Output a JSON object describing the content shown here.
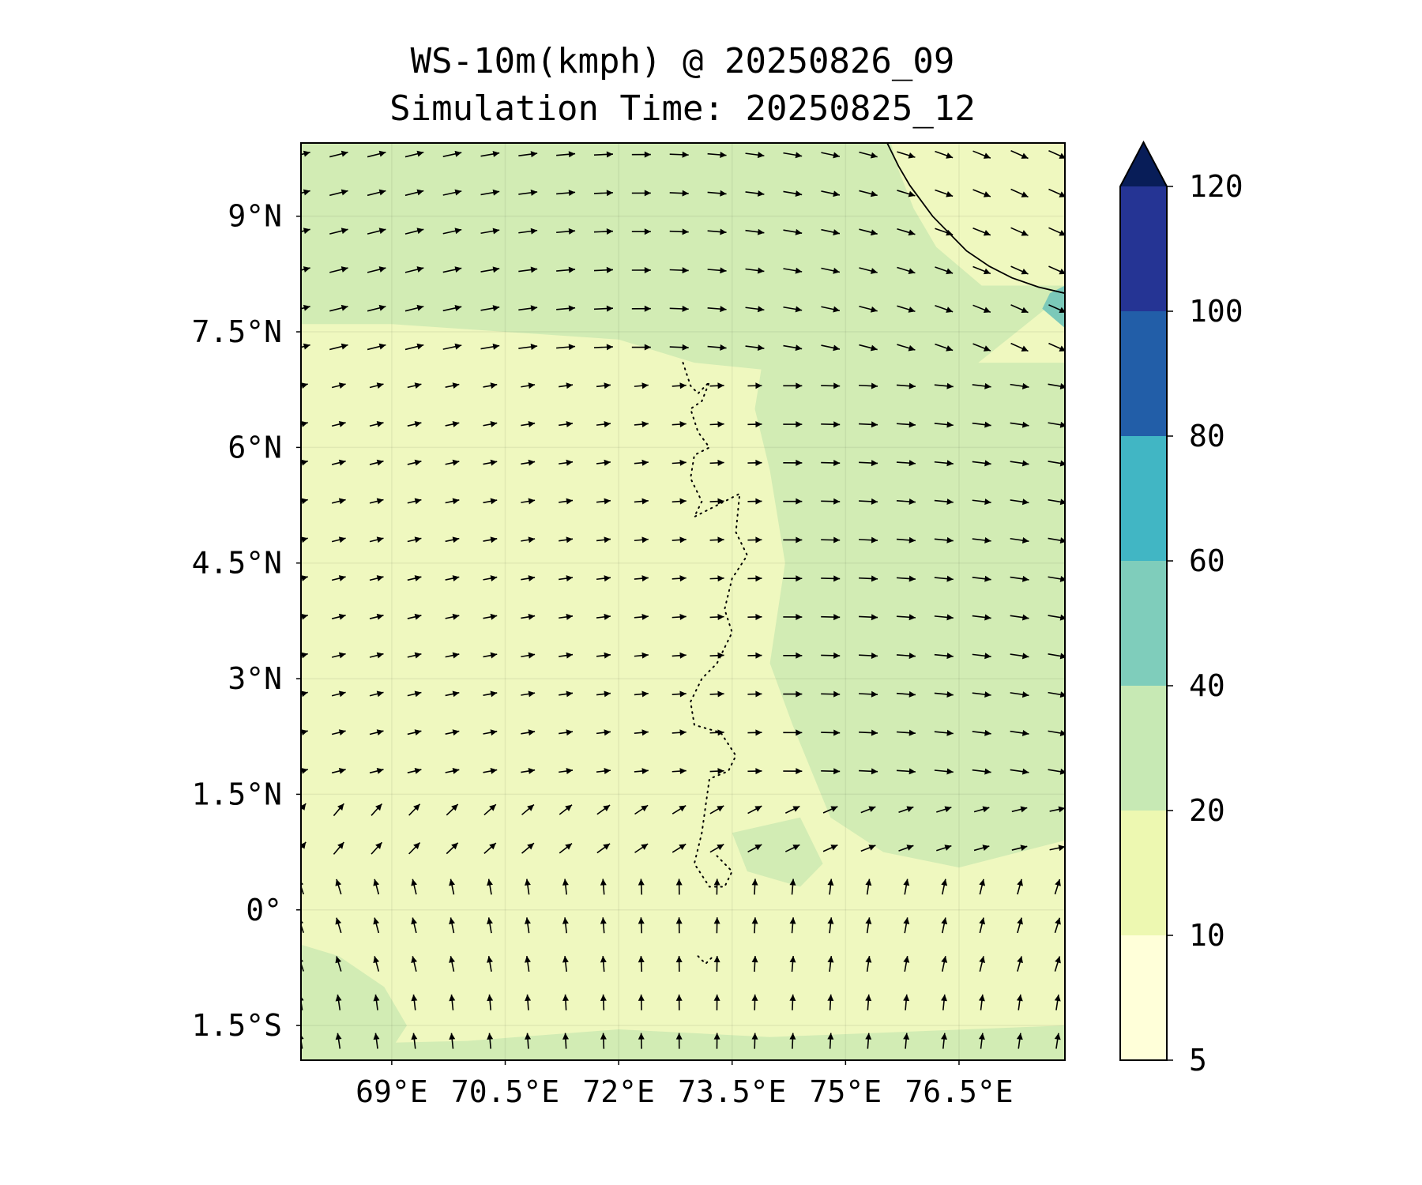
{
  "title": {
    "line1": "WS-10m(kmph) @ 20250826_09",
    "line2": "Simulation Time: 20250825_12"
  },
  "map": {
    "lon_range": [
      67.8,
      77.9
    ],
    "lat_range": [
      -1.95,
      9.95
    ],
    "x_ticks": [
      {
        "value": 69.0,
        "label": "69°E"
      },
      {
        "value": 70.5,
        "label": "70.5°E"
      },
      {
        "value": 72.0,
        "label": "72°E"
      },
      {
        "value": 73.5,
        "label": "73.5°E"
      },
      {
        "value": 75.0,
        "label": "75°E"
      },
      {
        "value": 76.5,
        "label": "76.5°E"
      }
    ],
    "y_ticks": [
      {
        "value": 9.0,
        "label": "9°N"
      },
      {
        "value": 7.5,
        "label": "7.5°N"
      },
      {
        "value": 6.0,
        "label": "6°N"
      },
      {
        "value": 4.5,
        "label": "4.5°N"
      },
      {
        "value": 3.0,
        "label": "3°N"
      },
      {
        "value": 1.5,
        "label": "1.5°N"
      },
      {
        "value": 0.0,
        "label": "0°"
      },
      {
        "value": -1.5,
        "label": "1.5°S"
      }
    ],
    "gridlines": true,
    "background_color": "#eff8bf",
    "field_regions": [
      {
        "name": "north-band-20-40",
        "color": "#d2ecb4",
        "polygon": [
          [
            67.8,
            9.95
          ],
          [
            77.9,
            9.95
          ],
          [
            77.9,
            8.0
          ],
          [
            76.5,
            6.9
          ],
          [
            75.0,
            6.9
          ],
          [
            74.0,
            7.0
          ],
          [
            73.0,
            7.1
          ],
          [
            72.0,
            7.4
          ],
          [
            70.5,
            7.5
          ],
          [
            69.0,
            7.6
          ],
          [
            67.8,
            7.6
          ]
        ]
      },
      {
        "name": "east-region-20-40",
        "color": "#d2ecb4",
        "polygon": [
          [
            73.9,
            7.1
          ],
          [
            77.9,
            7.1
          ],
          [
            77.9,
            0.9
          ],
          [
            76.5,
            0.55
          ],
          [
            75.5,
            0.75
          ],
          [
            74.8,
            1.2
          ],
          [
            74.3,
            2.4
          ],
          [
            74.0,
            3.2
          ],
          [
            74.2,
            4.5
          ],
          [
            74.0,
            5.7
          ],
          [
            73.8,
            6.5
          ]
        ]
      },
      {
        "name": "southeast-patch-20-40",
        "color": "#d2ecb4",
        "polygon": [
          [
            73.5,
            1.0
          ],
          [
            74.4,
            1.2
          ],
          [
            74.7,
            0.6
          ],
          [
            74.4,
            0.3
          ],
          [
            73.7,
            0.5
          ]
        ]
      },
      {
        "name": "southwest-patch-20-40",
        "color": "#d2ecb4",
        "polygon": [
          [
            67.8,
            -0.45
          ],
          [
            68.3,
            -0.6
          ],
          [
            68.9,
            -1.0
          ],
          [
            69.2,
            -1.5
          ],
          [
            68.9,
            -1.95
          ],
          [
            67.8,
            -1.95
          ]
        ]
      },
      {
        "name": "south-edge-band-20-40",
        "color": "#d2ecb4",
        "polygon": [
          [
            67.8,
            -1.75
          ],
          [
            70.0,
            -1.7
          ],
          [
            72.0,
            -1.55
          ],
          [
            74.0,
            -1.65
          ],
          [
            77.9,
            -1.5
          ],
          [
            77.9,
            -1.95
          ],
          [
            67.8,
            -1.95
          ]
        ]
      },
      {
        "name": "sri-lanka-land-light",
        "color": "#eff8bf",
        "polygon": [
          [
            75.6,
            9.95
          ],
          [
            77.9,
            9.95
          ],
          [
            77.9,
            8.1
          ],
          [
            76.8,
            8.1
          ],
          [
            76.2,
            8.6
          ],
          [
            75.9,
            9.1
          ],
          [
            75.7,
            9.6
          ]
        ]
      },
      {
        "name": "sri-lanka-coast-40-60",
        "color": "#7bc9b9",
        "polygon": [
          [
            77.7,
            8.0
          ],
          [
            77.9,
            8.1
          ],
          [
            77.9,
            7.55
          ],
          [
            77.6,
            7.8
          ]
        ]
      }
    ],
    "land_outlines": [
      {
        "name": "india-coastline",
        "style": "solid",
        "points": [
          [
            75.55,
            9.95
          ],
          [
            75.65,
            9.75
          ],
          [
            75.7,
            9.65
          ],
          [
            75.85,
            9.4
          ],
          [
            76.0,
            9.2
          ],
          [
            76.15,
            9.0
          ],
          [
            76.35,
            8.8
          ],
          [
            76.6,
            8.55
          ],
          [
            76.9,
            8.35
          ],
          [
            77.2,
            8.2
          ],
          [
            77.55,
            8.08
          ],
          [
            77.9,
            8.0
          ]
        ]
      },
      {
        "name": "maldives-atolls",
        "style": "dotted",
        "points": [
          [
            72.85,
            7.1
          ],
          [
            72.95,
            6.8
          ],
          [
            73.05,
            6.7
          ],
          [
            73.2,
            6.85
          ],
          [
            73.1,
            6.6
          ],
          [
            72.95,
            6.5
          ],
          [
            73.05,
            6.2
          ],
          [
            73.2,
            6.0
          ],
          [
            73.0,
            5.9
          ],
          [
            72.95,
            5.6
          ],
          [
            73.1,
            5.3
          ],
          [
            73.0,
            5.1
          ],
          [
            73.4,
            5.3
          ],
          [
            73.6,
            5.4
          ],
          [
            73.55,
            4.9
          ],
          [
            73.7,
            4.6
          ],
          [
            73.5,
            4.3
          ],
          [
            73.4,
            3.9
          ],
          [
            73.5,
            3.6
          ],
          [
            73.3,
            3.2
          ],
          [
            73.1,
            3.0
          ],
          [
            72.95,
            2.7
          ],
          [
            73.0,
            2.4
          ],
          [
            73.35,
            2.3
          ],
          [
            73.55,
            2.0
          ],
          [
            73.45,
            1.8
          ],
          [
            73.2,
            1.7
          ],
          [
            73.1,
            1.0
          ],
          [
            73.0,
            0.6
          ],
          [
            73.2,
            0.3
          ],
          [
            73.4,
            0.3
          ],
          [
            73.5,
            0.5
          ],
          [
            73.3,
            0.7
          ]
        ]
      },
      {
        "name": "addu-atoll",
        "style": "dotted",
        "points": [
          [
            73.05,
            -0.6
          ],
          [
            73.15,
            -0.7
          ],
          [
            73.25,
            -0.6
          ]
        ]
      }
    ],
    "arrow_grid": {
      "lon_start": 67.8,
      "lon_step": 0.5,
      "lon_count": 21,
      "lat_start": 9.8,
      "lat_step": -0.5,
      "lat_count": 24,
      "tail_color": "#000000"
    }
  },
  "colorbar": {
    "levels": [
      5,
      10,
      20,
      40,
      60,
      80,
      100,
      120
    ],
    "colors": [
      "#ffffd9",
      "#edf8b1",
      "#c7e9b4",
      "#7fcdbb",
      "#41b6c4",
      "#225ea8",
      "#253494"
    ],
    "over_color": "#081d58",
    "tick_labels": [
      "5",
      "10",
      "20",
      "40",
      "60",
      "80",
      "100",
      "120"
    ],
    "extend": "max"
  }
}
